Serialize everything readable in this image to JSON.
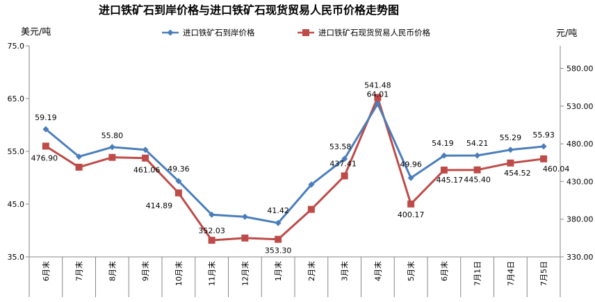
{
  "chart_data": {
    "type": "line",
    "title": "进口铁矿石到岸价格与进口铁矿石现货贸易人民币价格走势图",
    "y_left_label": "美元/吨",
    "y_right_label": "元/吨",
    "y_left": {
      "min": 35,
      "max": 75,
      "ticks": [
        "35.0",
        "45.0",
        "55.0",
        "65.0",
        "75.0"
      ]
    },
    "y_right": {
      "min": 330,
      "max": 610,
      "ticks": [
        "330.00",
        "380.00",
        "430.00",
        "480.00",
        "530.00",
        "580.00"
      ]
    },
    "categories": [
      "6月末",
      "7月末",
      "8月末",
      "9月末",
      "10月末",
      "11月末",
      "12月末",
      "1月末",
      "2月末",
      "3月末",
      "4月末",
      "5月末",
      "6月末",
      "7月1日",
      "7月4日",
      "7月5日"
    ],
    "legend_position": "top",
    "grid": false,
    "series": [
      {
        "name": "进口铁矿石到岸价格",
        "axis": "left",
        "color": "#4a7ebb",
        "marker": "diamond",
        "values": [
          59.19,
          54.0,
          55.8,
          55.3,
          49.36,
          43.0,
          42.6,
          41.42,
          48.7,
          53.58,
          64.01,
          49.96,
          54.19,
          54.21,
          55.29,
          55.93
        ],
        "labels": [
          "59.19",
          "",
          "55.80",
          "",
          "49.36",
          "",
          "",
          "41.42",
          "",
          "53.58",
          "64.01",
          "49.96",
          "54.19",
          "54.21",
          "55.29",
          "55.93"
        ]
      },
      {
        "name": "进口铁矿石现货贸易人民币价格",
        "axis": "right",
        "color": "#be4b48",
        "marker": "square",
        "values": [
          476.9,
          449.0,
          462.0,
          461.06,
          414.89,
          352.03,
          355.0,
          353.3,
          393.0,
          437.41,
          541.48,
          400.17,
          445.17,
          445.4,
          454.52,
          460.04
        ],
        "labels": [
          "476.90",
          "",
          "",
          "461.06",
          "414.89",
          "352.03",
          "",
          "353.30",
          "",
          "437.41",
          "541.48",
          "400.17",
          "445.17",
          "445.40",
          "454.52",
          "460.04"
        ]
      }
    ]
  }
}
